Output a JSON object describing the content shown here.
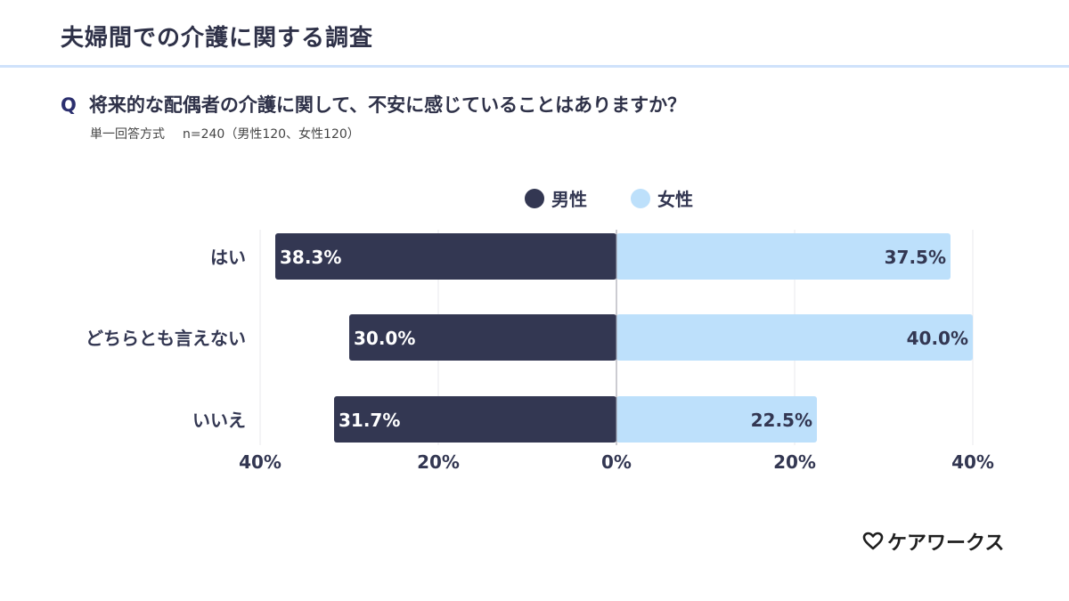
{
  "header": {
    "title": "夫婦間での介護に関する調査"
  },
  "question": {
    "mark": "Q",
    "text": "将来的な配偶者の介護に関して、不安に感じていることはありますか？",
    "method": "単一回答方式",
    "sample": "n=240（男性120、女性120）"
  },
  "brand": {
    "name": "ケアワークス",
    "icon": "heart-outline-icon"
  },
  "chart_data": {
    "type": "bar",
    "orientation": "horizontal-diverging",
    "categories": [
      "はい",
      "どちらとも言えない",
      "いいえ"
    ],
    "series": [
      {
        "name": "男性",
        "values": [
          38.3,
          30.0,
          31.7
        ],
        "labels": [
          "38.3%",
          "30.0%",
          "31.7%"
        ],
        "color": "#333752",
        "side": "left"
      },
      {
        "name": "女性",
        "values": [
          37.5,
          40.0,
          22.5
        ],
        "labels": [
          "37.5%",
          "40.0%",
          "22.5%"
        ],
        "color": "#bde0fb",
        "side": "right"
      }
    ],
    "x_ticks": [
      {
        "value": -40,
        "label": "40%"
      },
      {
        "value": -20,
        "label": "20%"
      },
      {
        "value": 0,
        "label": "0%"
      },
      {
        "value": 20,
        "label": "20%"
      },
      {
        "value": 40,
        "label": "40%"
      }
    ],
    "xlim": [
      -40,
      40
    ],
    "grid": true,
    "legend_position": "top-center"
  }
}
